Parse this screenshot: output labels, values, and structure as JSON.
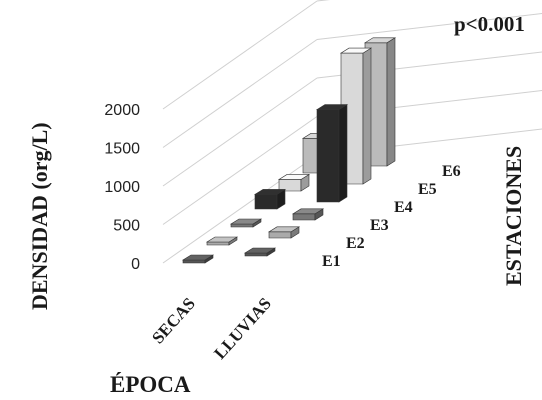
{
  "chart_data": {
    "type": "bar3d",
    "annotation": "p<0.001",
    "ylabel": "DENSIDAD (org/L)",
    "xlabel": "ÉPOCA",
    "zlabel": "ESTACIONES",
    "ylim": [
      0,
      2000
    ],
    "yticks": [
      "0",
      "500",
      "1000",
      "1500",
      "2000"
    ],
    "categories": [
      "SECAS",
      "LLUVIAS"
    ],
    "series": [
      {
        "name": "E1",
        "color": "#555555",
        "values": [
          10,
          30
        ]
      },
      {
        "name": "E2",
        "color": "#aaaaaa",
        "values": [
          10,
          80
        ]
      },
      {
        "name": "E3",
        "color": "#777777",
        "values": [
          20,
          80
        ]
      },
      {
        "name": "E4",
        "color": "#2a2a2a",
        "values": [
          190,
          1200
        ]
      },
      {
        "name": "E5",
        "color": "#d9d9d9",
        "values": [
          150,
          1700
        ]
      },
      {
        "name": "E6",
        "color": "#bbbbbb",
        "values": [
          450,
          1600
        ]
      }
    ]
  }
}
